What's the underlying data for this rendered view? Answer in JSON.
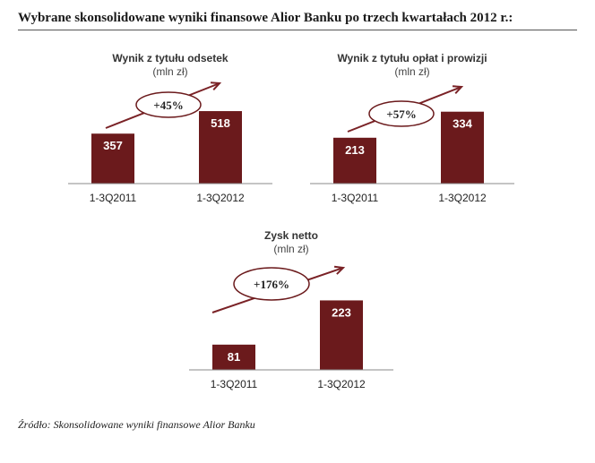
{
  "page_title": "Wybrane skonsolidowane wyniki finansowe Alior Banku po trzech kwartałach 2012 r.:",
  "source_note": "Źródło: Skonsolidowane wyniki finansowe Alior Banku",
  "colors": {
    "bar": "#6b1a1c",
    "arrow": "#7a2226",
    "axis": "#8a8a8a",
    "ellipse_stroke": "#6b1a1c"
  },
  "chart_data": [
    {
      "type": "bar",
      "title": "Wynik z tytułu odsetek",
      "unit": "(mln zł)",
      "categories": [
        "1-3Q2011",
        "1-3Q2012"
      ],
      "values": [
        357,
        518
      ],
      "value_labels": [
        "357",
        "518"
      ],
      "growth_label": "+45%",
      "ylim": [
        0,
        800
      ]
    },
    {
      "type": "bar",
      "title": "Wynik z tytułu opłat i prowizji",
      "unit": "(mln zł)",
      "categories": [
        "1-3Q2011",
        "1-3Q2012"
      ],
      "values": [
        213,
        334
      ],
      "value_labels": [
        "213",
        "334"
      ],
      "growth_label": "+57%",
      "ylim": [
        0,
        520
      ]
    },
    {
      "type": "bar",
      "title": "Zysk netto",
      "unit": "(mln zł)",
      "categories": [
        "1-3Q2011",
        "1-3Q2012"
      ],
      "values": [
        81,
        223
      ],
      "value_labels": [
        "81",
        "223"
      ],
      "growth_label": "+176%",
      "ylim": [
        0,
        345
      ]
    }
  ]
}
